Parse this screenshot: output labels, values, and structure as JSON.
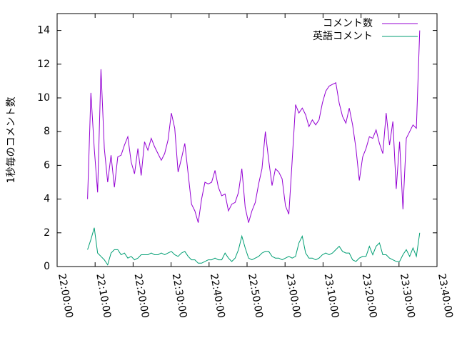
{
  "chart_data": {
    "type": "line",
    "y_label": "1秒毎のコメント数",
    "x": [
      "22:08:00",
      "22:08:53",
      "22:09:46",
      "22:10:39",
      "22:11:32",
      "22:12:25",
      "22:13:18",
      "22:14:11",
      "22:15:04",
      "22:15:57",
      "22:16:50",
      "22:17:43",
      "22:18:36",
      "22:19:29",
      "22:20:22",
      "22:21:15",
      "22:22:08",
      "22:23:01",
      "22:23:54",
      "22:24:47",
      "22:25:40",
      "22:26:33",
      "22:27:26",
      "22:28:19",
      "22:29:12",
      "22:30:05",
      "22:30:58",
      "22:31:51",
      "22:32:44",
      "22:33:37",
      "22:34:30",
      "22:35:23",
      "22:36:16",
      "22:37:09",
      "22:38:02",
      "22:38:55",
      "22:39:48",
      "22:40:41",
      "22:41:34",
      "22:42:27",
      "22:43:20",
      "22:44:13",
      "22:45:06",
      "22:45:59",
      "22:46:52",
      "22:47:45",
      "22:48:38",
      "22:49:31",
      "22:50:24",
      "22:51:17",
      "22:52:10",
      "22:53:03",
      "22:53:56",
      "22:54:49",
      "22:55:42",
      "22:56:35",
      "22:57:28",
      "22:58:21",
      "22:59:14",
      "23:00:07",
      "23:01:00",
      "23:01:53",
      "23:02:46",
      "23:03:39",
      "23:04:32",
      "23:05:25",
      "23:06:18",
      "23:07:11",
      "23:08:04",
      "23:08:57",
      "23:09:50",
      "23:10:43",
      "23:11:36",
      "23:12:29",
      "23:13:22",
      "23:14:15",
      "23:15:08",
      "23:16:01",
      "23:16:54",
      "23:17:47",
      "23:18:40",
      "23:19:33",
      "23:20:26",
      "23:21:19",
      "23:22:12",
      "23:23:05",
      "23:23:58",
      "23:24:51",
      "23:25:44",
      "23:26:37",
      "23:27:30",
      "23:28:23",
      "23:29:16",
      "23:30:09",
      "23:31:02",
      "23:31:55",
      "23:32:48",
      "23:33:41",
      "23:34:34",
      "23:35:27"
    ],
    "series": [
      {
        "name": "コメント数",
        "color": "#9400d3",
        "values": [
          4.0,
          10.3,
          7.0,
          4.4,
          11.7,
          7.0,
          5.0,
          6.6,
          4.7,
          6.5,
          6.6,
          7.2,
          7.7,
          6.2,
          5.5,
          7.0,
          5.4,
          7.4,
          6.9,
          7.6,
          7.1,
          6.7,
          6.3,
          6.7,
          7.5,
          9.1,
          8.2,
          5.6,
          6.4,
          7.3,
          5.5,
          3.7,
          3.3,
          2.6,
          4.0,
          5.0,
          4.9,
          5.0,
          5.7,
          4.7,
          4.2,
          4.3,
          3.3,
          3.7,
          3.8,
          4.4,
          5.8,
          3.5,
          2.6,
          3.3,
          3.8,
          4.9,
          5.8,
          8.0,
          6.3,
          4.8,
          5.8,
          5.6,
          5.2,
          3.6,
          3.1,
          6.3,
          9.6,
          9.1,
          9.4,
          9.0,
          8.3,
          8.7,
          8.4,
          8.7,
          9.7,
          10.4,
          10.7,
          10.8,
          10.9,
          9.7,
          8.9,
          8.5,
          9.4,
          8.4,
          7.0,
          5.1,
          6.5,
          7.0,
          7.7,
          7.6,
          8.1,
          7.3,
          6.7,
          9.1,
          7.2,
          8.6,
          4.6,
          7.4,
          3.4,
          7.6,
          8.0,
          8.4,
          8.2,
          14.0
        ]
      },
      {
        "name": "英語コメント",
        "color": "#009e73",
        "values": [
          1.0,
          1.6,
          2.3,
          0.8,
          0.6,
          0.4,
          0.1,
          0.8,
          1.0,
          1.0,
          0.7,
          0.8,
          0.5,
          0.6,
          0.4,
          0.5,
          0.7,
          0.7,
          0.7,
          0.8,
          0.7,
          0.7,
          0.8,
          0.7,
          0.8,
          0.9,
          0.7,
          0.6,
          0.8,
          0.9,
          0.6,
          0.4,
          0.4,
          0.2,
          0.2,
          0.3,
          0.4,
          0.4,
          0.5,
          0.4,
          0.4,
          0.8,
          0.5,
          0.3,
          0.5,
          1.0,
          1.8,
          1.1,
          0.5,
          0.4,
          0.5,
          0.6,
          0.8,
          0.9,
          0.9,
          0.6,
          0.5,
          0.5,
          0.4,
          0.5,
          0.6,
          0.5,
          0.6,
          1.4,
          1.8,
          0.8,
          0.5,
          0.5,
          0.4,
          0.5,
          0.7,
          0.8,
          0.7,
          0.8,
          1.0,
          1.2,
          0.9,
          0.8,
          0.8,
          0.4,
          0.3,
          0.5,
          0.6,
          0.6,
          1.2,
          0.7,
          1.2,
          1.4,
          0.7,
          0.7,
          0.5,
          0.4,
          0.3,
          0.3,
          0.7,
          1.0,
          0.6,
          1.1,
          0.6,
          2.0
        ]
      }
    ],
    "xlim": [
      "22:00:00",
      "23:40:00"
    ],
    "xticks": [
      "22:00:00",
      "22:10:00",
      "22:20:00",
      "22:30:00",
      "22:40:00",
      "22:50:00",
      "23:00:00",
      "23:10:00",
      "23:20:00",
      "23:30:00",
      "23:40:00"
    ],
    "ylim": [
      0,
      15
    ],
    "yticks": [
      0,
      2,
      4,
      6,
      8,
      10,
      12,
      14
    ],
    "legend": "upper right"
  }
}
